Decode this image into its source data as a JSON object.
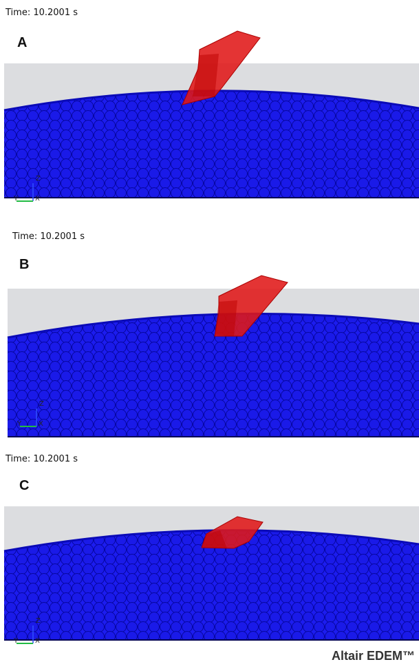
{
  "panels": [
    {
      "time": "Time: 10.2001 s",
      "label": "A",
      "axes": {
        "z": "Z",
        "y": "Y",
        "x": "X"
      }
    },
    {
      "time": "Time: 10.2001 s",
      "label": "B",
      "axes": {
        "z": "Z",
        "y": "Y",
        "x": "X"
      }
    },
    {
      "time": "Time: 10.2001 s",
      "label": "C",
      "axes": {
        "z": "Z",
        "y": "Y",
        "x": "X"
      }
    }
  ],
  "footer": {
    "brand": "Altair EDEM™"
  }
}
